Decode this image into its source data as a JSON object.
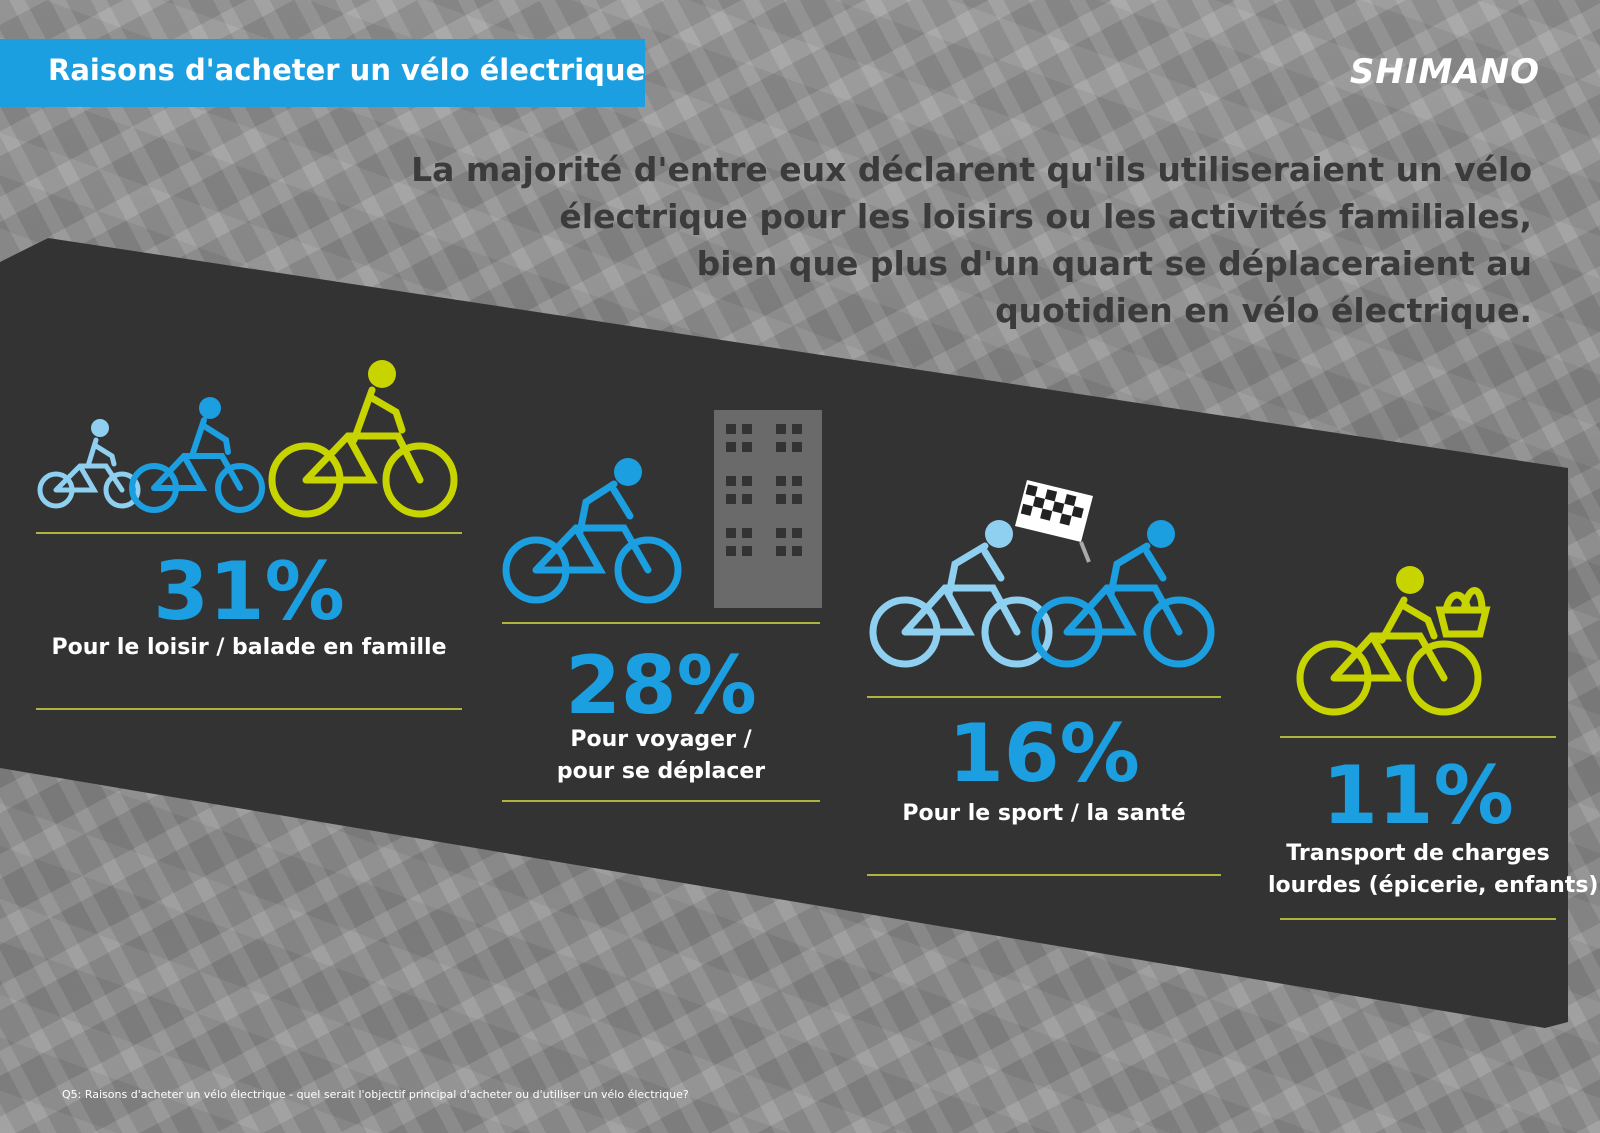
{
  "header": {
    "title": "Raisons d'acheter un vélo électrique",
    "logo": "SHIMANO"
  },
  "headline": {
    "lines": [
      "La majorité d'entre eux déclarent qu'ils utiliseraient un vélo",
      "électrique pour les loisirs ou les activités familiales,",
      "bien que plus d'un quart se déplaceraient au",
      "quotidien en vélo électrique."
    ]
  },
  "stats": [
    {
      "value": "31%",
      "label_lines": [
        "Pour le loisir / balade en famille"
      ],
      "icon": "family-cyclists-icon"
    },
    {
      "value": "28%",
      "label_lines": [
        "Pour voyager /",
        "pour se déplacer"
      ],
      "icon": "commuter-building-icon"
    },
    {
      "value": "16%",
      "label_lines": [
        "Pour le sport / la santé"
      ],
      "icon": "racing-cyclists-flag-icon"
    },
    {
      "value": "11%",
      "label_lines": [
        "Transport de charges",
        "lourdes (épicerie, enfants)"
      ],
      "icon": "cargo-bike-basket-icon"
    }
  ],
  "footnote": "Q5: Raisons d'acheter un vélo électrique - quel serait l'objectif principal d'acheter ou d'utiliser un vélo électrique?",
  "colors": {
    "accent_blue": "#1b9fe0",
    "light_blue": "#8fd0f0",
    "lime": "#c8d400",
    "band": "#333333",
    "rule": "#b1b43a",
    "building": "#6a6a6a"
  }
}
